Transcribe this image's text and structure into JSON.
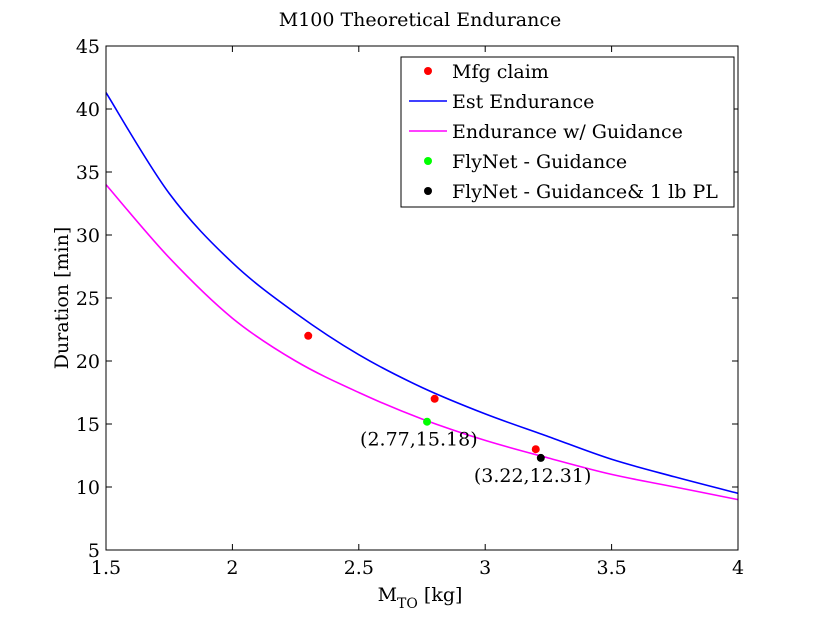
{
  "chart_data": {
    "type": "line",
    "title": "M100 Theoretical Endurance",
    "xlabel": {
      "main": "M",
      "sub": "TO",
      "unit": " [kg]"
    },
    "ylabel": "Duration [min]",
    "xlim": [
      1.5,
      4
    ],
    "ylim": [
      5,
      45
    ],
    "xticks": [
      1.5,
      2,
      2.5,
      3,
      3.5,
      4
    ],
    "xtick_labels": [
      "1.5",
      "2",
      "2.5",
      "3",
      "3.5",
      "4"
    ],
    "yticks": [
      5,
      10,
      15,
      20,
      25,
      30,
      35,
      40,
      45
    ],
    "ytick_labels": [
      "5",
      "10",
      "15",
      "20",
      "25",
      "30",
      "35",
      "40",
      "45"
    ],
    "grid": false,
    "legend_position": "top-right",
    "series": [
      {
        "name": "Mfg claim",
        "kind": "marker",
        "color": "#ff0000",
        "x": [
          2.3,
          2.8,
          3.2
        ],
        "y": [
          22.0,
          17.0,
          13.0
        ]
      },
      {
        "name": "Est Endurance",
        "kind": "line",
        "color": "#0000ff",
        "x": [
          1.5,
          1.75,
          2.0,
          2.25,
          2.5,
          2.75,
          3.0,
          3.25,
          3.5,
          3.75,
          4.0
        ],
        "y": [
          41.3,
          33.3,
          27.8,
          23.8,
          20.5,
          17.9,
          15.8,
          14.0,
          12.2,
          10.8,
          9.5
        ]
      },
      {
        "name": "Endurance w/ Guidance",
        "kind": "line",
        "color": "#ff00ff",
        "x": [
          1.5,
          1.75,
          2.0,
          2.25,
          2.5,
          2.75,
          3.0,
          3.25,
          3.5,
          3.75,
          4.0
        ],
        "y": [
          34.0,
          28.2,
          23.4,
          20.0,
          17.5,
          15.4,
          13.7,
          12.3,
          11.0,
          10.0,
          9.0
        ]
      },
      {
        "name": "FlyNet - Guidance",
        "kind": "marker",
        "color": "#00ff00",
        "x": [
          2.77
        ],
        "y": [
          15.18
        ]
      },
      {
        "name": "FlyNet - Guidance& 1 lb PL",
        "kind": "marker",
        "color": "#000000",
        "x": [
          3.22
        ],
        "y": [
          12.31
        ]
      }
    ],
    "annotations": [
      {
        "text": "(2.77,15.18)",
        "x": 2.77,
        "y": 15.18
      },
      {
        "text": "(3.22,12.31)",
        "x": 3.22,
        "y": 12.31
      }
    ]
  }
}
